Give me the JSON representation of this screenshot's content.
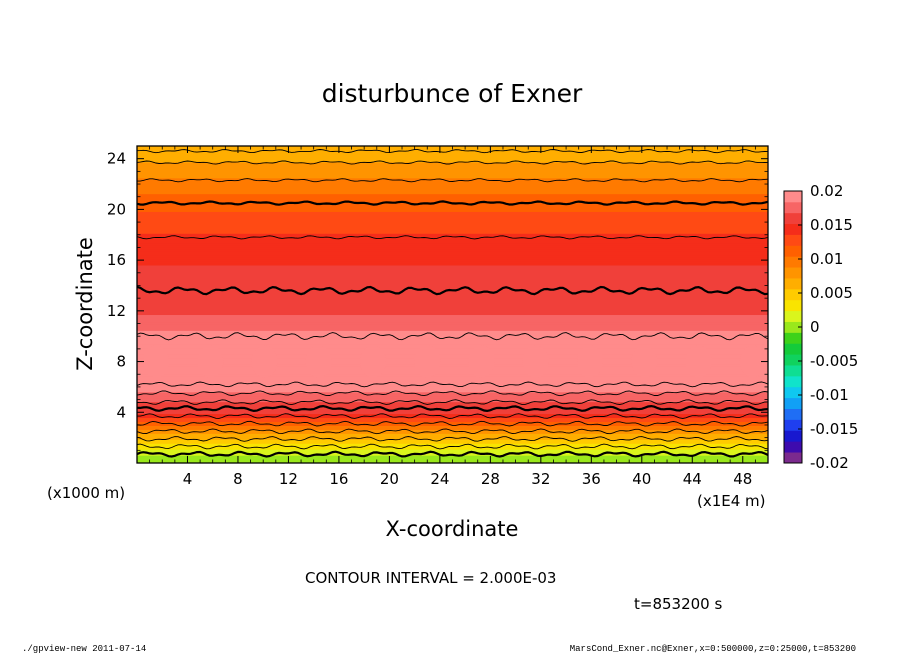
{
  "footer": {
    "left": "./gpview-new  2011-07-14",
    "right": "MarsCond_Exner.nc@Exner,x=0:500000,z=0:25000,t=853200"
  },
  "chart_data": {
    "type": "heatmap",
    "title": "disturbunce of Exner",
    "xlabel": "X-coordinate",
    "ylabel": "Z-coordinate",
    "x_unit_left": "(x1000 m)",
    "x_unit_right": "(x1E4 m)",
    "xlim": [
      0,
      50
    ],
    "ylim": [
      0,
      25
    ],
    "x_ticks": [
      4,
      8,
      12,
      16,
      20,
      24,
      28,
      32,
      36,
      40,
      44,
      48
    ],
    "y_ticks": [
      4,
      8,
      12,
      16,
      20,
      24
    ],
    "contour_interval_text": "CONTOUR INTERVAL = 2.000E-03",
    "time_text": "t=853200 s",
    "colorbar": {
      "range": [
        -0.02,
        0.02
      ],
      "ticks": [
        "0.02",
        "0.015",
        "0.01",
        "0.005",
        "0",
        "-0.005",
        "-0.01",
        "-0.015",
        "-0.02"
      ],
      "tick_values": [
        0.02,
        0.015,
        0.01,
        0.005,
        0,
        -0.005,
        -0.01,
        -0.015,
        -0.02
      ],
      "colors_bottom_to_top": [
        "#7B2A8E",
        "#3E0BAE",
        "#1818CF",
        "#1F3FEF",
        "#1F6EF5",
        "#11A0F6",
        "#0FC8F0",
        "#10E3CB",
        "#0FDE93",
        "#10D25E",
        "#14CB3A",
        "#3DD21A",
        "#9AE81C",
        "#DAF51D",
        "#F9E400",
        "#FFCB00",
        "#FFAE00",
        "#FF9400",
        "#FF7A00",
        "#FF6000",
        "#FF4A14",
        "#F52D1A",
        "#F0403A",
        "#F76565",
        "#FF8B8B"
      ]
    },
    "profile_z": [
      0,
      0.5,
      1,
      1.5,
      2,
      2.5,
      3,
      3.5,
      4,
      4.5,
      5,
      5.5,
      6,
      7,
      8,
      9,
      10,
      11,
      12,
      13,
      14,
      15,
      16,
      17,
      18,
      19,
      20,
      21,
      22,
      23,
      24,
      25
    ],
    "profile_value": [
      -0.001,
      0.0005,
      0.002,
      0.004,
      0.006,
      0.008,
      0.0105,
      0.013,
      0.0155,
      0.0165,
      0.017,
      0.018,
      0.0195,
      0.021,
      0.0215,
      0.021,
      0.019,
      0.0175,
      0.0165,
      0.016,
      0.0158,
      0.0155,
      0.015,
      0.0145,
      0.0138,
      0.0128,
      0.0118,
      0.0107,
      0.0095,
      0.0082,
      0.0068,
      0.006
    ],
    "contour_levels_z": [
      0.7,
      1.3,
      1.9,
      2.5,
      3.1,
      3.7,
      4.3,
      4.8,
      5.5,
      6.2,
      10,
      13.6,
      17.8,
      20.5,
      22.3,
      23.7,
      24.6
    ],
    "bold_contour_z": [
      0.7,
      4.3,
      13.6,
      20.5
    ]
  }
}
